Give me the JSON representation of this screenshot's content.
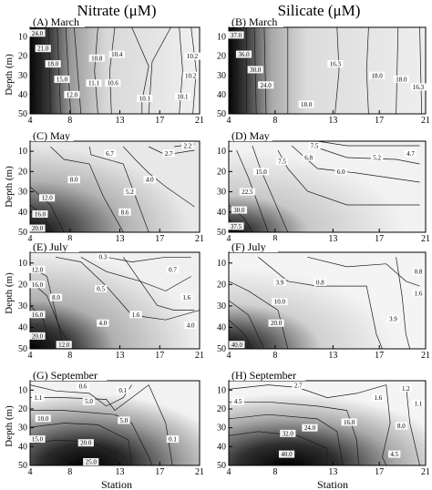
{
  "columns": [
    "Nitrate (μM)",
    "Silicate (μM)"
  ],
  "chart_data": [
    {
      "type": "contour",
      "variable": "Nitrate",
      "unit": "μM",
      "title": "(A) March",
      "xlabel": "",
      "ylabel": "Depth (m)",
      "xlim": [
        4,
        21
      ],
      "ylim": [
        50,
        5
      ],
      "x_ticks": [
        "4",
        "8",
        "13",
        "17",
        "21"
      ],
      "y_ticks": [
        "10",
        "20",
        "30",
        "40",
        "50"
      ],
      "contours": [
        {
          "value": "24.0",
          "x": 4.1,
          "y": 8
        },
        {
          "value": "21.0",
          "x": 5.3,
          "y": 16
        },
        {
          "value": "18.0",
          "x": 6.3,
          "y": 24
        },
        {
          "value": "15.0",
          "x": 7.2,
          "y": 32
        },
        {
          "value": "12.0",
          "x": 8.2,
          "y": 40
        },
        {
          "value": "10.8",
          "x": 10.7,
          "y": 21
        },
        {
          "value": "10.4",
          "x": 12.7,
          "y": 19
        },
        {
          "value": "10.6",
          "x": 12.3,
          "y": 34
        },
        {
          "value": "11.1",
          "x": 10.4,
          "y": 34
        },
        {
          "value": "10.1",
          "x": 15.5,
          "y": 42
        },
        {
          "value": "10.2",
          "x": 20.4,
          "y": 20
        },
        {
          "value": "10.2",
          "x": 20.1,
          "y": 30
        },
        {
          "value": "10.1",
          "x": 19.3,
          "y": 41
        }
      ]
    },
    {
      "type": "contour",
      "variable": "Silicate",
      "unit": "μM",
      "title": "(B) March",
      "xlabel": "",
      "ylabel": "",
      "xlim": [
        4,
        21
      ],
      "ylim": [
        50,
        5
      ],
      "x_ticks": [
        "4",
        "8",
        "13",
        "17",
        "21"
      ],
      "y_ticks": [
        "10",
        "20",
        "30",
        "40",
        "50"
      ],
      "contours": [
        {
          "value": "37.0",
          "x": 4.2,
          "y": 9
        },
        {
          "value": "36.0",
          "x": 5.3,
          "y": 19
        },
        {
          "value": "30.0",
          "x": 6.3,
          "y": 27
        },
        {
          "value": "24.0",
          "x": 7.2,
          "y": 35
        },
        {
          "value": "18.0",
          "x": 10.7,
          "y": 45
        },
        {
          "value": "16.3",
          "x": 13.2,
          "y": 24
        },
        {
          "value": "18.0",
          "x": 16.8,
          "y": 30
        },
        {
          "value": "18.0",
          "x": 18.9,
          "y": 32
        },
        {
          "value": "16.3",
          "x": 20.8,
          "y": 36
        }
      ]
    },
    {
      "type": "contour",
      "variable": "Nitrate",
      "unit": "μM",
      "title": "(C) May",
      "xlabel": "",
      "ylabel": "Depth (m)",
      "xlim": [
        4,
        21
      ],
      "ylim": [
        50,
        5
      ],
      "x_ticks": [
        "4",
        "8",
        "13",
        "17",
        "21"
      ],
      "y_ticks": [
        "10",
        "20",
        "30",
        "40",
        "50"
      ],
      "contours": [
        {
          "value": "20.0",
          "x": 4.2,
          "y": 48
        },
        {
          "value": "16.0",
          "x": 5.0,
          "y": 41
        },
        {
          "value": "12.0",
          "x": 5.7,
          "y": 33
        },
        {
          "value": "8.0",
          "x": 8.4,
          "y": 24
        },
        {
          "value": "6.7",
          "x": 12.0,
          "y": 11
        },
        {
          "value": "5.2",
          "x": 14.0,
          "y": 30
        },
        {
          "value": "8.6",
          "x": 13.5,
          "y": 40
        },
        {
          "value": "4.0",
          "x": 16.0,
          "y": 24
        },
        {
          "value": "2.7",
          "x": 17.9,
          "y": 11
        },
        {
          "value": "2.2",
          "x": 19.8,
          "y": 6
        }
      ]
    },
    {
      "type": "contour",
      "variable": "Silicate",
      "unit": "μM",
      "title": "(D) May",
      "xlabel": "",
      "ylabel": "",
      "xlim": [
        4,
        21
      ],
      "ylim": [
        50,
        5
      ],
      "x_ticks": [
        "4",
        "8",
        "13",
        "17",
        "21"
      ],
      "y_ticks": [
        "10",
        "20",
        "30",
        "40",
        "50"
      ],
      "contours": [
        {
          "value": "37.5",
          "x": 4.4,
          "y": 47
        },
        {
          "value": "30.0",
          "x": 4.9,
          "y": 39
        },
        {
          "value": "22.5",
          "x": 5.6,
          "y": 30
        },
        {
          "value": "15.0",
          "x": 6.8,
          "y": 20
        },
        {
          "value": "7.5",
          "x": 8.6,
          "y": 15
        },
        {
          "value": "7.5",
          "x": 11.4,
          "y": 2
        },
        {
          "value": "6.8",
          "x": 10.9,
          "y": 13
        },
        {
          "value": "6.0",
          "x": 13.7,
          "y": 20
        },
        {
          "value": "5.2",
          "x": 16.8,
          "y": 13
        },
        {
          "value": "4.7",
          "x": 19.7,
          "y": 11
        }
      ]
    },
    {
      "type": "contour",
      "variable": "Nitrate",
      "unit": "μM",
      "title": "(E) July",
      "xlabel": "",
      "ylabel": "Depth (m)",
      "xlim": [
        4,
        21
      ],
      "ylim": [
        50,
        5
      ],
      "x_ticks": [
        "4",
        "8",
        "13",
        "17",
        "21"
      ],
      "y_ticks": [
        "10",
        "20",
        "30",
        "40",
        "50"
      ],
      "contours": [
        {
          "value": "12.0",
          "x": 4.3,
          "y": 13
        },
        {
          "value": "16.0",
          "x": 4.3,
          "y": 20
        },
        {
          "value": "16.0",
          "x": 4.3,
          "y": 34
        },
        {
          "value": "20.0",
          "x": 4.6,
          "y": 44
        },
        {
          "value": "12.0",
          "x": 7.4,
          "y": 48
        },
        {
          "value": "8.0",
          "x": 6.6,
          "y": 26
        },
        {
          "value": "0.3",
          "x": 11.3,
          "y": 7
        },
        {
          "value": "0.5",
          "x": 11.1,
          "y": 22
        },
        {
          "value": "4.0",
          "x": 11.3,
          "y": 38
        },
        {
          "value": "1.6",
          "x": 14.6,
          "y": 34
        },
        {
          "value": "0.7",
          "x": 18.3,
          "y": 13
        },
        {
          "value": "1.6",
          "x": 19.7,
          "y": 26
        },
        {
          "value": "4.0",
          "x": 20.1,
          "y": 39
        }
      ]
    },
    {
      "type": "contour",
      "variable": "Silicate",
      "unit": "μM",
      "title": "(F) July",
      "xlabel": "",
      "ylabel": "",
      "xlim": [
        4,
        21
      ],
      "ylim": [
        50,
        5
      ],
      "x_ticks": [
        "4",
        "8",
        "13",
        "17",
        "21"
      ],
      "y_ticks": [
        "10",
        "20",
        "30",
        "40",
        "50"
      ],
      "contours": [
        {
          "value": "40.0",
          "x": 4.7,
          "y": 48
        },
        {
          "value": "20.0",
          "x": 8.1,
          "y": 38
        },
        {
          "value": "10.0",
          "x": 8.4,
          "y": 28
        },
        {
          "value": "3.9",
          "x": 8.4,
          "y": 19
        },
        {
          "value": "0.8",
          "x": 11.9,
          "y": 19
        },
        {
          "value": "3.9",
          "x": 18.2,
          "y": 36
        },
        {
          "value": "0.8",
          "x": 20.5,
          "y": 14
        },
        {
          "value": "1.6",
          "x": 20.7,
          "y": 24
        }
      ]
    },
    {
      "type": "contour",
      "variable": "Nitrate",
      "unit": "μM",
      "title": "(G) September",
      "xlabel": "Station",
      "ylabel": "Depth (m)",
      "xlim": [
        4,
        21
      ],
      "ylim": [
        50,
        5
      ],
      "x_ticks": [
        "4",
        "8",
        "13",
        "17",
        "21"
      ],
      "y_ticks": [
        "10",
        "20",
        "30",
        "40",
        "50"
      ],
      "contours": [
        {
          "value": "1.1",
          "x": 4.8,
          "y": 14
        },
        {
          "value": "0.6",
          "x": 9.3,
          "y": 8
        },
        {
          "value": "0.1",
          "x": 13.3,
          "y": 10
        },
        {
          "value": "5.0",
          "x": 9.9,
          "y": 16
        },
        {
          "value": "10.0",
          "x": 5.3,
          "y": 25
        },
        {
          "value": "15.0",
          "x": 4.6,
          "y": 36
        },
        {
          "value": "20.0",
          "x": 9.6,
          "y": 38
        },
        {
          "value": "25.0",
          "x": 10.1,
          "y": 49
        },
        {
          "value": "5.0",
          "x": 13.4,
          "y": 26
        },
        {
          "value": "0.1",
          "x": 18.3,
          "y": 36
        }
      ]
    },
    {
      "type": "contour",
      "variable": "Silicate",
      "unit": "μM",
      "title": "(H) September",
      "xlabel": "Station",
      "ylabel": "",
      "xlim": [
        4,
        21
      ],
      "ylim": [
        50,
        5
      ],
      "x_ticks": [
        "4",
        "8",
        "13",
        "17",
        "21"
      ],
      "y_ticks": [
        "10",
        "20",
        "30",
        "40",
        "50"
      ],
      "contours": [
        {
          "value": "4.5",
          "x": 4.8,
          "y": 16
        },
        {
          "value": "2.7",
          "x": 10.0,
          "y": 6
        },
        {
          "value": "16.0",
          "x": 14.4,
          "y": 27
        },
        {
          "value": "24.0",
          "x": 11.0,
          "y": 30
        },
        {
          "value": "32.0",
          "x": 9.1,
          "y": 33
        },
        {
          "value": "40.0",
          "x": 9.0,
          "y": 44
        },
        {
          "value": "1.6",
          "x": 16.9,
          "y": 14
        },
        {
          "value": "1.2",
          "x": 19.3,
          "y": 9
        },
        {
          "value": "1.1",
          "x": 20.6,
          "y": 17
        },
        {
          "value": "8.0",
          "x": 18.9,
          "y": 29
        },
        {
          "value": "4.5",
          "x": 18.3,
          "y": 44
        }
      ]
    }
  ]
}
